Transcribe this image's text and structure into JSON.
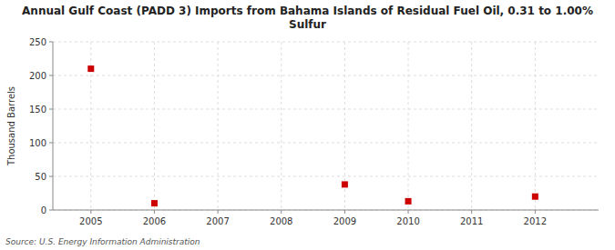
{
  "chart_data": {
    "type": "scatter",
    "title": "Annual Gulf Coast (PADD 3) Imports from Bahama Islands of Residual Fuel Oil, 0.31 to 1.00%\nSulfur",
    "y_label": "Thousand Barrels",
    "annotations": [
      "Source: U.S. Energy Information Administration"
    ],
    "x": [
      2005,
      2006,
      2009,
      2010,
      2012
    ],
    "values": [
      210,
      10,
      38,
      13,
      20
    ],
    "color": "#cc0000",
    "marker": "square",
    "xlim": [
      2004.4,
      2013.0
    ],
    "ylim": [
      0,
      250
    ],
    "xticks": [
      2005,
      2006,
      2007,
      2008,
      2009,
      2010,
      2011,
      2012
    ],
    "yticks": [
      0,
      50,
      100,
      150,
      200,
      250
    ],
    "grid": true
  }
}
